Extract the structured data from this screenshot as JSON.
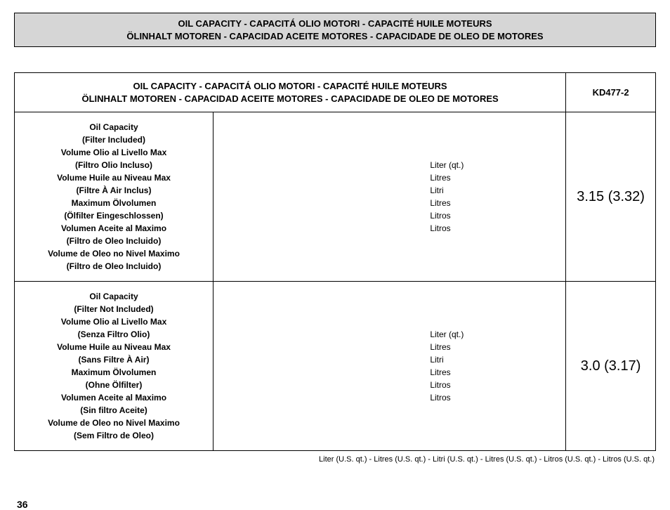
{
  "banner": {
    "line1": "OIL CAPACITY - CAPACITÁ OLIO MOTORI - CAPACITÉ HUILE MOTEURS",
    "line2": "ÖLINHALT MOTOREN - CAPACIDAD ACEITE MOTORES - CAPACIDADE DE OLEO DE MOTORES"
  },
  "table": {
    "header": {
      "line1": "OIL CAPACITY - CAPACITÁ OLIO MOTORI - CAPACITÉ HUILE MOTEURS",
      "line2": "ÖLINHALT  MOTOREN - CAPACIDAD ACEITE MOTORES - CAPACIDADE DE OLEO DE MOTORES",
      "model": "KD477-2"
    },
    "rows": [
      {
        "desc": [
          "Oil Capacity",
          "(Filter Included)",
          "Volume Olio al Livello Max",
          "(Filtro Olio Incluso)",
          "Volume Huile au Niveau Max",
          "(Filtre À Air Inclus)",
          "Maximum Ölvolumen",
          "(Ölfilter Eingeschlossen)",
          "Volumen Aceite al Maximo",
          "(Filtro de Oleo Incluido)",
          "Volume de Oleo no Nivel Maximo",
          "(Filtro de Oleo Incluido)"
        ],
        "units": [
          "Liter (qt.)",
          "Litres",
          "Litri",
          "Litres",
          "Litros",
          "Litros"
        ],
        "value": "3.15 (3.32)"
      },
      {
        "desc": [
          "Oil Capacity",
          "(Filter Not Included)",
          "Volume Olio al Livello Max",
          "(Senza Filtro Olio)",
          "Volume Huile au Niveau Max",
          "(Sans Filtre À Air)",
          "Maximum Ölvolumen",
          "(Ohne Ölfilter)",
          "Volumen Aceite al Maximo",
          "(Sin filtro Aceite)",
          "Volume de Oleo no Nivel Maximo",
          "(Sem Filtro de Oleo)"
        ],
        "units": [
          "Liter (qt.)",
          "Litres",
          "Litri",
          "Litres",
          "Litros",
          "Litros"
        ],
        "value": "3.0 (3.17)"
      }
    ]
  },
  "footnote": "Liter (U.S. qt.) - Litres (U.S. qt.) - Litri (U.S. qt.) - Litres (U.S. qt.) - Litros (U.S. qt.) - Litros (U.S. qt.)",
  "pageNumber": "36",
  "layout": {
    "col_desc_pct": 31,
    "col_units_pct": 55,
    "col_val_pct": 14
  }
}
